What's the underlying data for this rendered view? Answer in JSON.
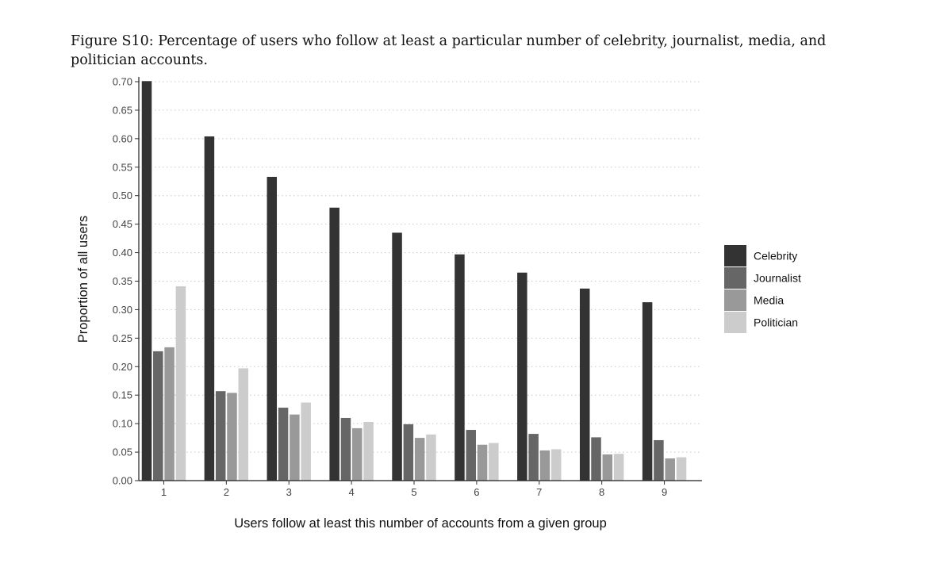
{
  "caption": "Figure S10: Percentage of users who follow at least a particular number of celebrity, journalist, media, and politician accounts.",
  "chart_data": {
    "type": "bar",
    "title": "",
    "xlabel": "Users follow at least this number of accounts from a given group",
    "ylabel": "Proportion of all users",
    "categories": [
      "1",
      "2",
      "3",
      "4",
      "5",
      "6",
      "7",
      "8",
      "9"
    ],
    "ylim": [
      0,
      0.7
    ],
    "yticks": [
      "0.00",
      "0.05",
      "0.10",
      "0.15",
      "0.20",
      "0.25",
      "0.30",
      "0.35",
      "0.40",
      "0.45",
      "0.50",
      "0.55",
      "0.60",
      "0.65",
      "0.70"
    ],
    "grid": true,
    "legend_position": "right",
    "series": [
      {
        "name": "Celebrity",
        "color": "#333333",
        "values": [
          0.705,
          0.604,
          0.533,
          0.479,
          0.435,
          0.397,
          0.365,
          0.337,
          0.313
        ]
      },
      {
        "name": "Journalist",
        "color": "#666666",
        "values": [
          0.227,
          0.157,
          0.128,
          0.11,
          0.099,
          0.089,
          0.082,
          0.076,
          0.071
        ]
      },
      {
        "name": "Media",
        "color": "#999999",
        "values": [
          0.234,
          0.154,
          0.116,
          0.092,
          0.075,
          0.063,
          0.053,
          0.046,
          0.039
        ]
      },
      {
        "name": "Politician",
        "color": "#cccccc",
        "values": [
          0.341,
          0.197,
          0.137,
          0.103,
          0.081,
          0.066,
          0.055,
          0.047,
          0.041
        ]
      }
    ]
  }
}
